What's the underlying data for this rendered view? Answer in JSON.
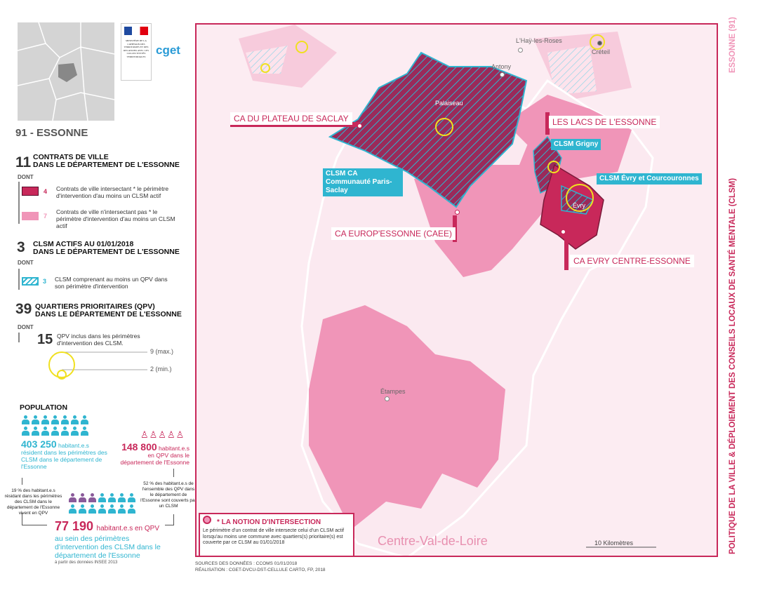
{
  "header": {
    "department": "91 - ESSONNE",
    "logo_ministry_text": "MINISTÈRE DE LA COHÉSION DES TERRITOIRES ET DES RELATIONS AVEC LES COLLECTIVITÉS TERRITORIALES",
    "logo_cget": "cget"
  },
  "legend": {
    "contrats": {
      "count": "11",
      "title1": "CONTRATS DE VILLE",
      "title2": "DANS LE DÉPARTEMENT DE L'ESSONNE",
      "dont": "DONT",
      "items": [
        {
          "count": "4",
          "text": "Contrats de ville intersectant * le périmètre d'intervention d'au moins un CLSM actif",
          "color": "#c8285a"
        },
        {
          "count": "7",
          "text": "Contrats de ville n'intersectant pas * le périmètre d'intervention d'au moins un CLSM actif",
          "color": "#f095b8"
        }
      ]
    },
    "clsm": {
      "count": "3",
      "title1": "CLSM ACTIFS AU 01/01/2018",
      "title2": "DANS LE DÉPARTEMENT DE L'ESSONNE",
      "dont": "DONT",
      "item": {
        "count": "3",
        "text": "CLSM comprenant au moins un QPV dans son périmètre d'intervention",
        "color": "#2fb5d0"
      }
    },
    "qpv": {
      "count": "39",
      "title1": "QUARTIERS PRIORITAIRES (QPV)",
      "title2": "DANS LE DÉPARTEMENT DE L'ESSONNE",
      "dont": "DONT",
      "item": {
        "count": "15",
        "text": "QPV inclus dans les périmètres d'intervention des CLSM."
      },
      "max_label": "9 (max.)",
      "min_label": "2 (min.)"
    }
  },
  "population": {
    "title": "POPULATION",
    "clsm_pop": {
      "value": "403 250",
      "unit": "habitant.e.s",
      "text": "résident dans les périmètres des CLSM dans le département de l'Essonne"
    },
    "qpv_pop": {
      "value": "148 800",
      "unit": "habitant.e.s",
      "text": "en QPV dans le département de l'Essonne"
    },
    "pct_left": "19 % des habitant.e.s résidant dans les périmètres des CLSM dans le département de l'Essonne vivent en QPV",
    "pct_right": "52 % des habitant.e.s de l'ensemble des QPV dans le département de l'Essonne sont couverts par un CLSM",
    "inter_pop": {
      "value": "77 190",
      "unit": "habitant.e.s en QPV",
      "text": "au sein des périmètres d'intervention des CLSM dans le département de l'Essonne"
    },
    "source": "à partir des données INSEE 2013"
  },
  "map": {
    "towns": [
      "L'Haÿ-les-Roses",
      "Créteil",
      "Antony",
      "Palaiseau",
      "Évry",
      "Étampes"
    ],
    "labels": {
      "saclay": "CA DU PLATEAU DE SACLAY",
      "lacs": "LES LACS DE L'ESSONNE",
      "caee": "CA EUROP'ESSONNE (CAEE)",
      "evry": "CA EVRY CENTRE-ESSONNE"
    },
    "clsm_labels": {
      "grigny": "CLSM Grigny",
      "paris_saclay": "CLSM CA Communauté Paris-Saclay",
      "evry": "CLSM Évry et Courcouronnes"
    },
    "region": "Centre-Val-de-Loire",
    "scale": "10  Kilomètres",
    "colors": {
      "dark": "#c8285a",
      "light": "#f095b8",
      "hatch": "#2fb5d0",
      "qpv_circle": "#f0e020",
      "frame": "#c8285a"
    }
  },
  "intersection": {
    "title": "* LA NOTION D'INTERSECTION",
    "text": "Le périmètre d'un contrat de ville intersecte celui d'un CLSM actif lorsqu'au moins une commune avec quartiers(s) prioritaire(s) est couverte par ce CLSM au 01/01/2018"
  },
  "footer": {
    "sources": "SOURCES DES DONNÉES : CCOMS 01/01/2018",
    "realisation": "RÉALISATION : CGET-DVCU-DST-CELLULE CARTO, FP, 2018"
  },
  "side": {
    "dept": "ESSONNE (91)",
    "title": "POLITIQUE DE LA VILLE & DÉPLOIEMENT DES CONSEILS LOCAUX DE SANTÉ MENTALE (CLSM)"
  }
}
